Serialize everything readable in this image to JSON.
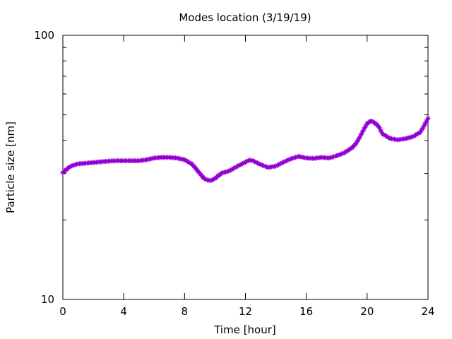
{
  "chart_data": {
    "type": "line",
    "title": "Modes location (3/19/19)",
    "xlabel": "Time [hour]",
    "ylabel": "Particle size [nm]",
    "xlim": [
      0,
      24
    ],
    "ylim": [
      10,
      100
    ],
    "yscale": "log",
    "xticks": [
      0,
      4,
      8,
      12,
      16,
      20,
      24
    ],
    "yticks": [
      10,
      100
    ],
    "grid": false,
    "legend": "none",
    "series": [
      {
        "color": "#9400d3",
        "marker": "star",
        "x": [
          0,
          0.25,
          0.5,
          0.75,
          1,
          1.5,
          2,
          2.5,
          3,
          3.5,
          4,
          4.5,
          5,
          5.5,
          6,
          6.5,
          7,
          7.5,
          8,
          8.5,
          9,
          9.25,
          9.5,
          9.75,
          10,
          10.25,
          10.5,
          10.75,
          11,
          11.5,
          12,
          12.25,
          12.5,
          13,
          13.5,
          14,
          14.5,
          15,
          15.5,
          16,
          16.5,
          17,
          17.5,
          18,
          18.5,
          19,
          19.25,
          19.5,
          19.75,
          20,
          20.25,
          20.5,
          20.75,
          21,
          21.5,
          22,
          22.5,
          23,
          23.5,
          23.75,
          24
        ],
        "y": [
          30.2,
          31.1,
          31.9,
          32.3,
          32.6,
          32.8,
          33.0,
          33.2,
          33.4,
          33.5,
          33.5,
          33.5,
          33.5,
          33.8,
          34.3,
          34.5,
          34.5,
          34.3,
          33.8,
          32.5,
          30.0,
          28.8,
          28.3,
          28.2,
          28.7,
          29.5,
          30.2,
          30.4,
          30.8,
          32.0,
          33.1,
          33.7,
          33.5,
          32.4,
          31.6,
          32.0,
          33.1,
          34.1,
          34.8,
          34.3,
          34.2,
          34.5,
          34.3,
          35.0,
          35.9,
          37.5,
          38.8,
          41.0,
          43.7,
          46.3,
          47.5,
          46.6,
          45.3,
          42.4,
          40.7,
          40.2,
          40.6,
          41.3,
          43.0,
          45.5,
          48.5
        ]
      }
    ]
  }
}
